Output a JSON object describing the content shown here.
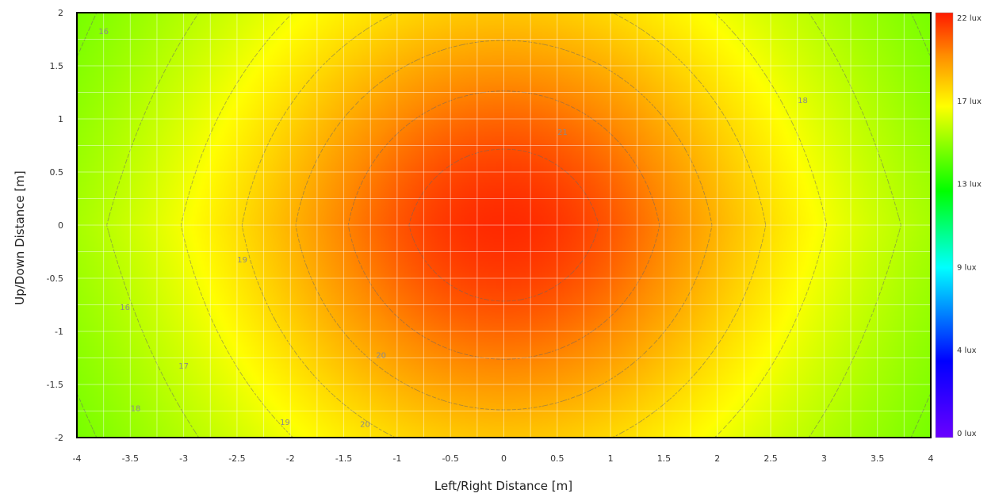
{
  "chart_data": {
    "type": "heatmap",
    "xlabel": "Left/Right Distance [m]",
    "ylabel": "Up/Down Distance [m]",
    "xlim": [
      -4,
      4
    ],
    "ylim": [
      -2,
      2
    ],
    "x_ticks": [
      "-4",
      "-3.5",
      "-3",
      "-2.5",
      "-2",
      "-1.5",
      "-1",
      "-0.5",
      "0",
      "0.5",
      "1",
      "1.5",
      "2",
      "2.5",
      "3",
      "3.5",
      "4"
    ],
    "y_ticks": [
      "2",
      "1.5",
      "1",
      "0.5",
      "0",
      "-0.5",
      "-1",
      "-1.5",
      "-2"
    ],
    "grid": true,
    "legend": "right",
    "colorbar": {
      "min": 0,
      "max": 22,
      "unit": "lux",
      "labels": [
        "22 lux",
        "17 lux",
        "13 lux",
        "9 lux",
        "4 lux",
        "0 lux"
      ]
    },
    "contour_levels": [
      15,
      16,
      17,
      18,
      19,
      20,
      21
    ],
    "contour_labels": [
      {
        "text": "16",
        "x": -3.75,
        "y": 1.8
      },
      {
        "text": "18",
        "x": 2.8,
        "y": 1.15
      },
      {
        "text": "21",
        "x": 0.55,
        "y": 0.85
      },
      {
        "text": "19",
        "x": -2.45,
        "y": -0.35
      },
      {
        "text": "16",
        "x": -3.55,
        "y": -0.8
      },
      {
        "text": "20",
        "x": -1.15,
        "y": -1.25
      },
      {
        "text": "17",
        "x": -3.0,
        "y": -1.35
      },
      {
        "text": "18",
        "x": -3.45,
        "y": -1.75
      },
      {
        "text": "19",
        "x": -2.05,
        "y": -1.88
      },
      {
        "text": "20",
        "x": -1.3,
        "y": -1.9
      }
    ],
    "field": {
      "peak_lux": 21.7,
      "peak_x": 0,
      "peak_y": 0
    },
    "colors": {
      "red": "#ff1a00",
      "orange": "#ff8c00",
      "yellow": "#ffff00",
      "green": "#00ff00",
      "cyan": "#00ffff",
      "blue": "#0000ff",
      "violet": "#6a00ff"
    }
  }
}
